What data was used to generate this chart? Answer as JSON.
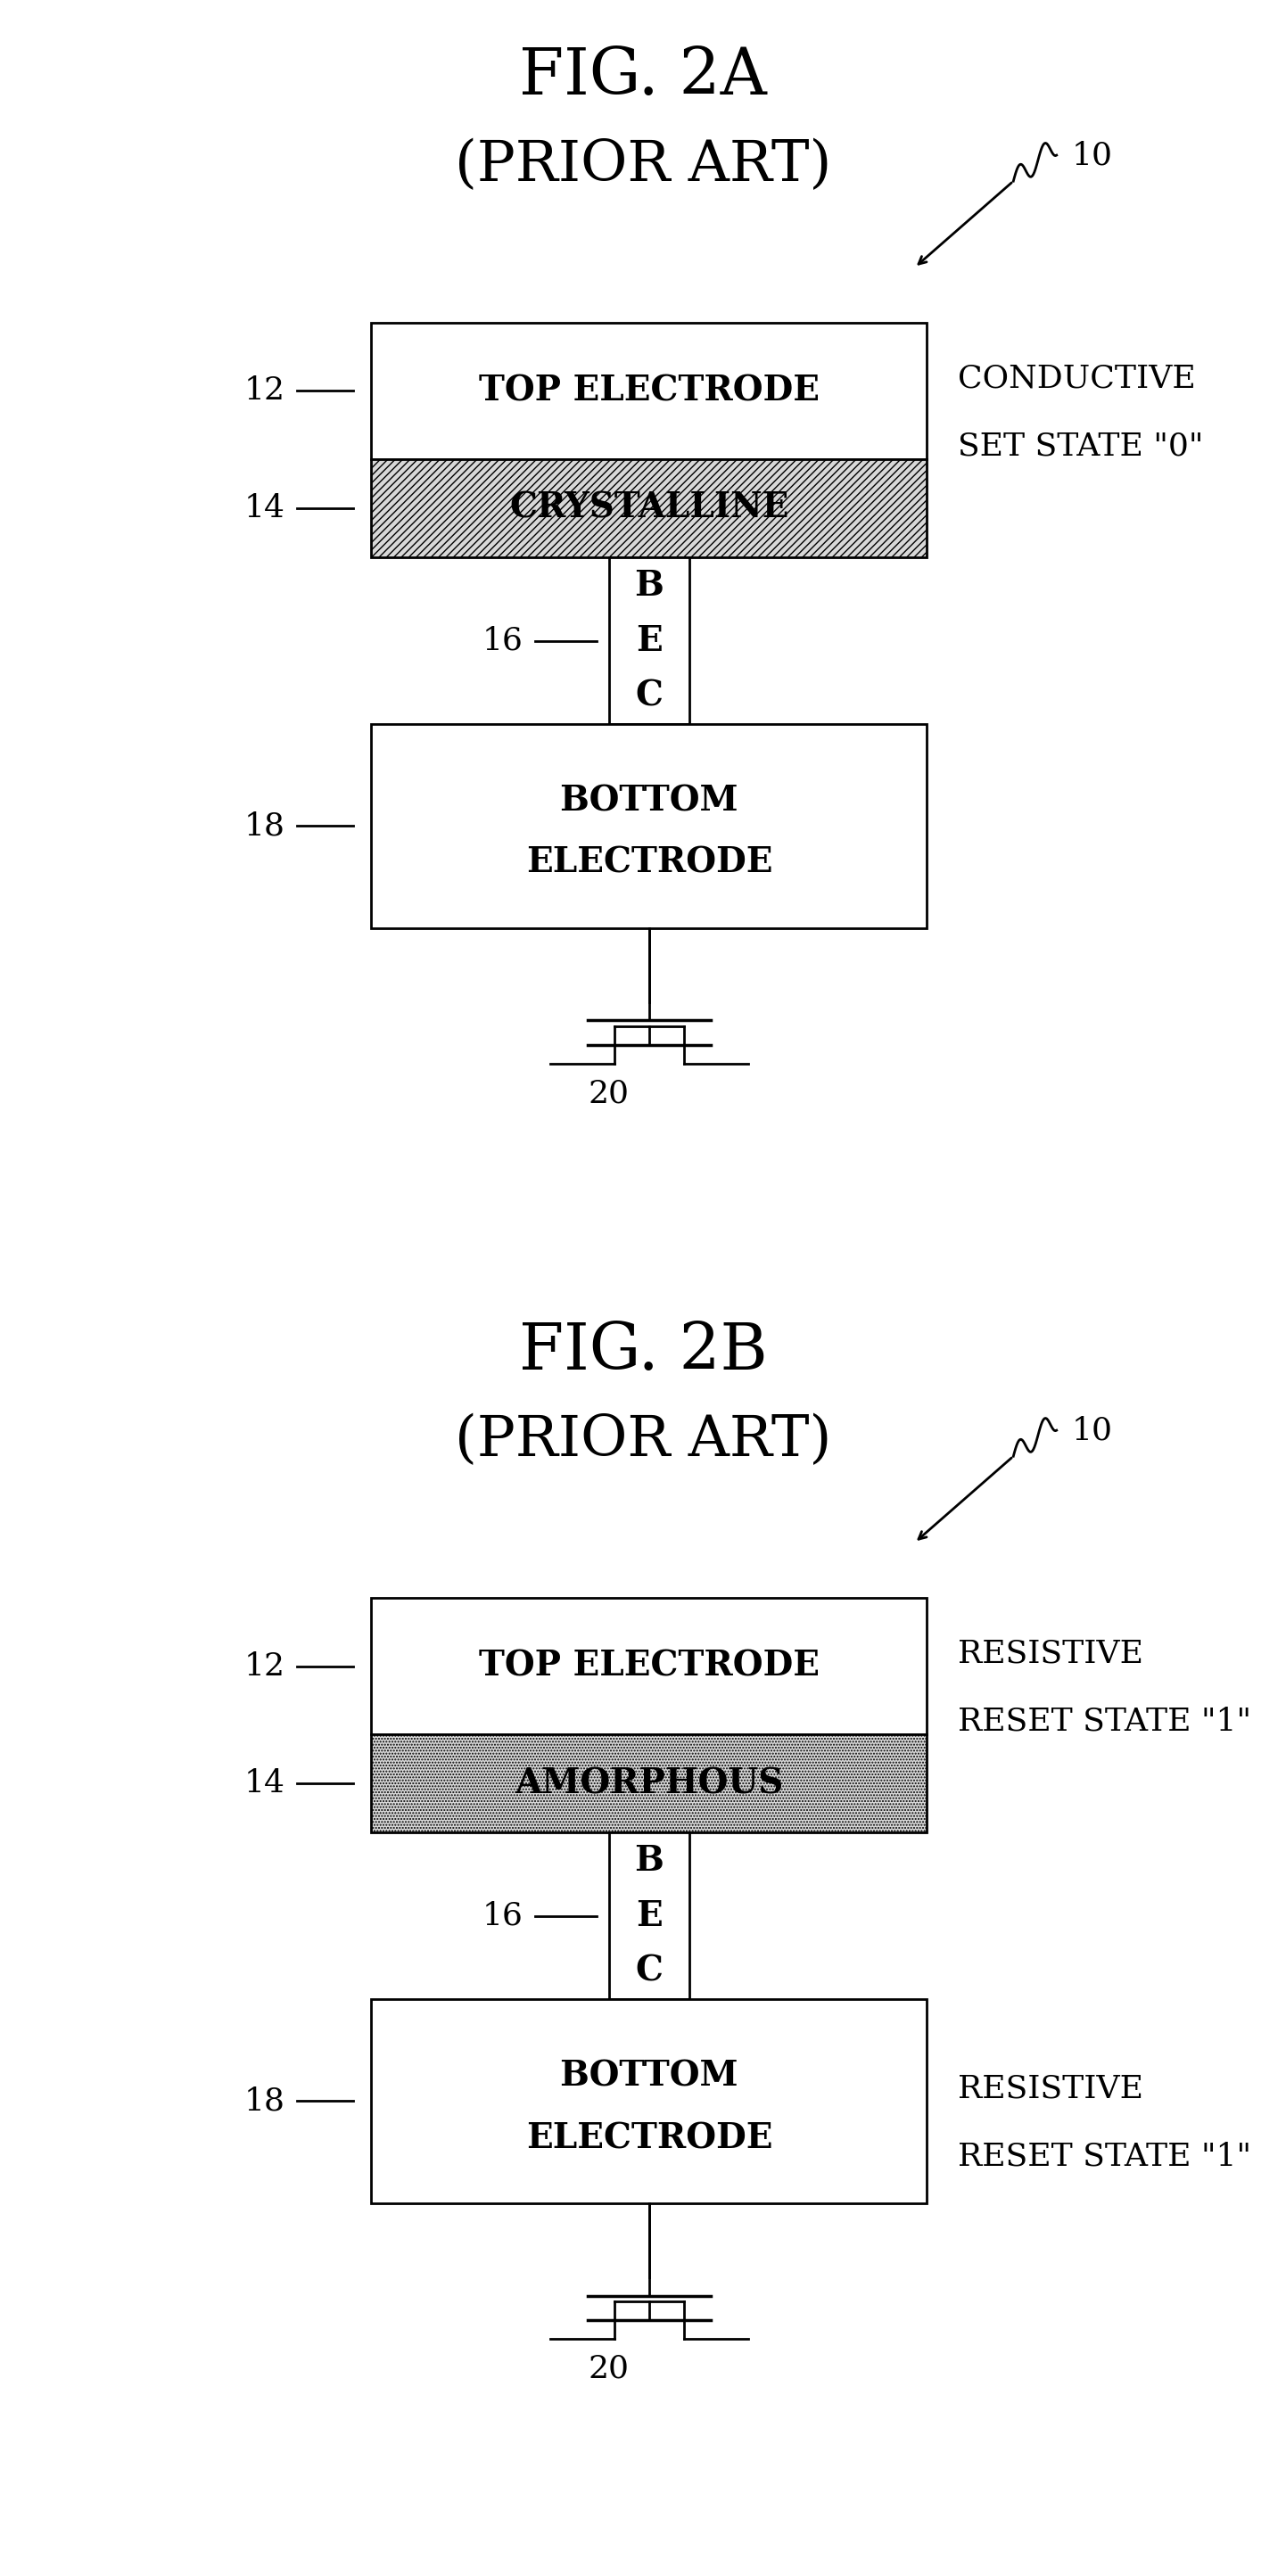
{
  "fig_title_a": "FIG. 2A",
  "fig_subtitle_a": "(PRIOR ART)",
  "fig_title_b": "FIG. 2B",
  "fig_subtitle_b": "(PRIOR ART)",
  "label_10": "10",
  "label_12": "12",
  "label_14": "14",
  "label_16": "16",
  "label_18": "18",
  "label_20": "20",
  "label_top_electrode": "TOP ELECTRODE",
  "label_crystalline": "CRYSTALLINE",
  "label_amorphous": "AMORPHOUS",
  "label_bec": [
    "B",
    "E",
    "C"
  ],
  "label_bottom_electrode_1": "BOTTOM",
  "label_bottom_electrode_2": "ELECTRODE",
  "label_state_a_1": "CONDUCTIVE",
  "label_state_a_2": "SET STATE \"0\"",
  "label_state_b_1": "RESISTIVE",
  "label_state_b_2": "RESET STATE \"1\"",
  "bg_color": "#ffffff",
  "box_edge_color": "#000000",
  "box_fill_color": "#ffffff",
  "hatch_crystalline": "////",
  "hatch_amorphous": ".....",
  "font_size_title": 52,
  "font_size_subtitle": 46,
  "font_size_label": 28,
  "font_size_ref": 26
}
